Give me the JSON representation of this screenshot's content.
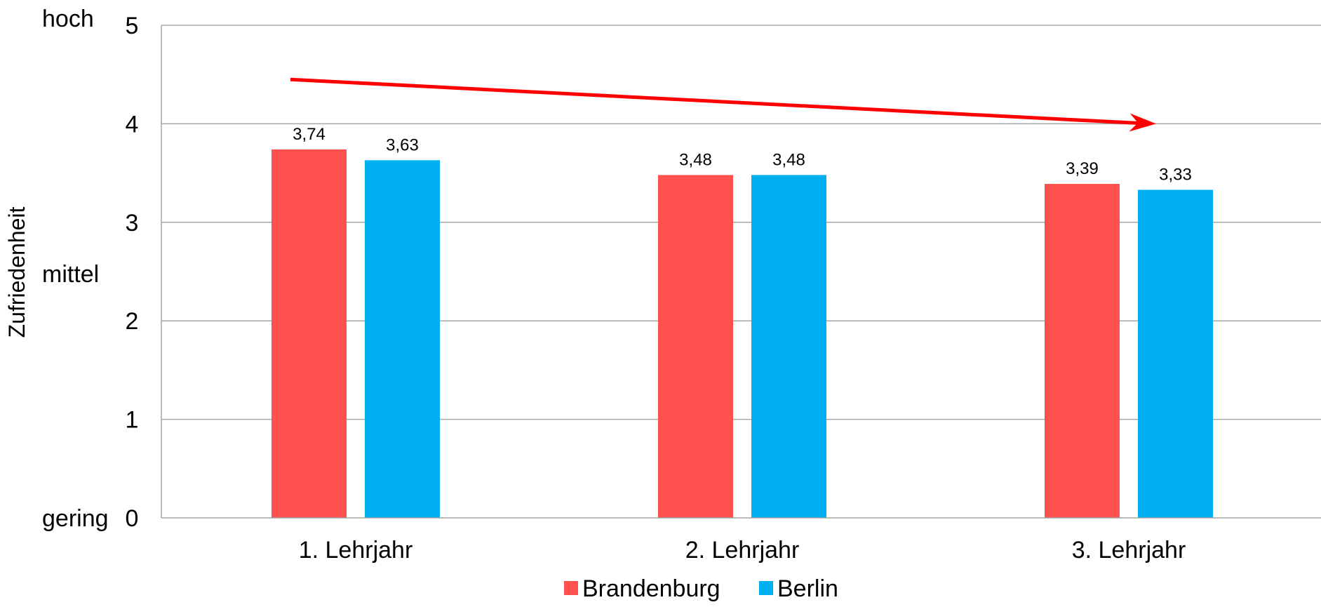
{
  "chart_data": {
    "type": "bar",
    "categories": [
      "1. Lehrjahr",
      "2. Lehrjahr",
      "3. Lehrjahr"
    ],
    "series": [
      {
        "name": "Brandenburg",
        "color": "#FF5050",
        "values": [
          3.74,
          3.48,
          3.39
        ],
        "labels": [
          "3,74",
          "3,48",
          "3,39"
        ]
      },
      {
        "name": "Berlin",
        "color": "#00B0F0",
        "values": [
          3.63,
          3.48,
          3.33
        ],
        "labels": [
          "3,63",
          "3,48",
          "3,33"
        ]
      }
    ],
    "ylabel": "Zufriedenheit",
    "ylim": [
      0,
      5
    ],
    "yticks": [
      "0",
      "1",
      "2",
      "3",
      "4",
      "5"
    ],
    "y_qualifiers": [
      {
        "text": "hoch",
        "value": 5
      },
      {
        "text": "mittel",
        "value": 2.5
      },
      {
        "text": "gering",
        "value": 0
      }
    ],
    "grid": true,
    "legend_position": "bottom",
    "trend_arrow": {
      "color": "#FF0000",
      "from_value": 4.45,
      "to_value": 4.0,
      "direction": "down"
    }
  }
}
